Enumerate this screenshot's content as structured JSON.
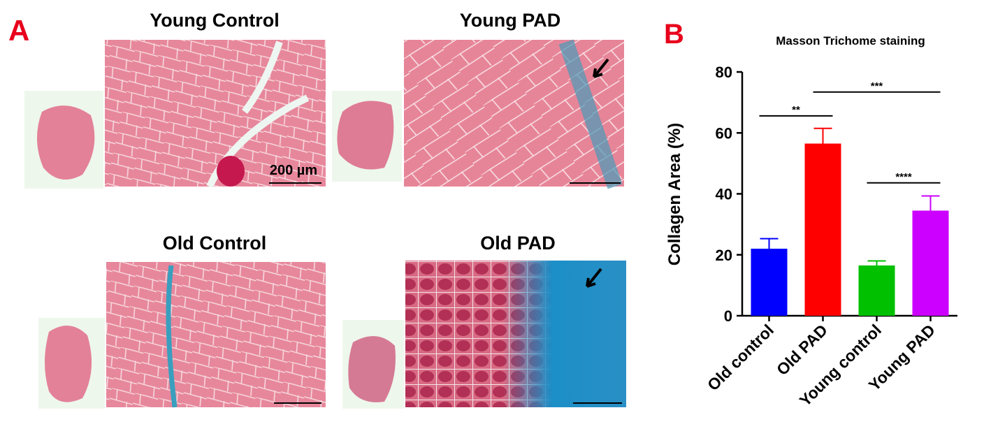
{
  "panel_a": {
    "label": "A",
    "titles": [
      "Young Control",
      "Young PAD",
      "Old Control",
      "Old PAD"
    ],
    "scale_label": "200 µm"
  },
  "chart_data": {
    "type": "bar",
    "panel_label": "B",
    "title": "Masson Trichome staining",
    "y_label": "Collagen Area (%)",
    "categories": [
      "Old control",
      "Old PAD",
      "Young control",
      "Young PAD"
    ],
    "values": [
      22,
      56.5,
      16.5,
      34.5
    ],
    "errors": [
      3.3,
      5,
      1.5,
      4.8
    ],
    "colors": [
      "#0000ff",
      "#ff0000",
      "#00c000",
      "#cc00ff"
    ],
    "ylim": [
      0,
      80
    ],
    "yticks": [
      0,
      20,
      40,
      60,
      80
    ],
    "annotations": [
      {
        "text": "**",
        "start": "Old control",
        "end": "Old PAD",
        "y": 65.6
      },
      {
        "text": "***",
        "start": "Old PAD",
        "end": "Young PAD",
        "y": 73.4
      },
      {
        "text": "****",
        "start": "Young control",
        "end": "Young PAD",
        "y": 43.6
      }
    ]
  }
}
